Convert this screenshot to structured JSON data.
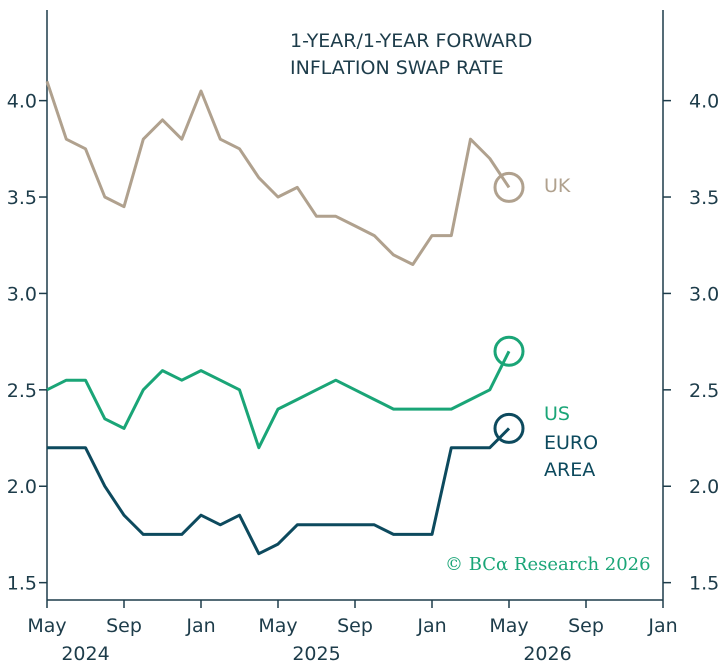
{
  "chart_data": {
    "type": "line",
    "title": "1-YEAR/1-YEAR FORWARD INFLATION SWAP RATE",
    "source": "© BCα Research 2026",
    "x": [
      "2024-05",
      "2024-06",
      "2024-07",
      "2024-08",
      "2024-09",
      "2024-10",
      "2024-11",
      "2024-12",
      "2025-01",
      "2025-02",
      "2025-03",
      "2025-04",
      "2025-05",
      "2025-06",
      "2025-07",
      "2025-08",
      "2025-09",
      "2025-10",
      "2025-11",
      "2025-12",
      "2026-01",
      "2026-02",
      "2026-03",
      "2026-04",
      "2026-05"
    ],
    "series": [
      {
        "name": "UK",
        "color": "#b0a18e",
        "values": [
          4.1,
          3.8,
          3.75,
          3.5,
          3.45,
          3.8,
          3.9,
          3.8,
          4.05,
          3.8,
          3.75,
          3.6,
          3.5,
          3.55,
          3.4,
          3.4,
          3.35,
          3.3,
          3.2,
          3.15,
          3.3,
          3.3,
          3.8,
          3.7,
          3.55
        ]
      },
      {
        "name": "US",
        "color": "#1aa577",
        "values": [
          2.5,
          2.55,
          2.55,
          2.35,
          2.3,
          2.5,
          2.6,
          2.55,
          2.6,
          2.55,
          2.5,
          2.2,
          2.4,
          2.45,
          2.5,
          2.55,
          2.5,
          2.45,
          2.4,
          2.4,
          2.4,
          2.4,
          2.45,
          2.5,
          2.7
        ]
      },
      {
        "name": "EURO AREA",
        "color": "#0d4a5e",
        "values": [
          2.2,
          2.2,
          2.2,
          2.0,
          1.85,
          1.75,
          1.75,
          1.75,
          1.85,
          1.8,
          1.85,
          1.65,
          1.7,
          1.8,
          1.8,
          1.8,
          1.8,
          1.8,
          1.75,
          1.75,
          1.75,
          2.2,
          2.2,
          2.2,
          2.3
        ]
      }
    ],
    "xlim": [
      "2024-05",
      "2027-01"
    ],
    "xticks": [
      {
        "value": "2024-05",
        "label": "May"
      },
      {
        "value": "2024-09",
        "label": "Sep"
      },
      {
        "value": "2025-01",
        "label": "Jan"
      },
      {
        "value": "2025-05",
        "label": "May"
      },
      {
        "value": "2025-09",
        "label": "Sep"
      },
      {
        "value": "2026-01",
        "label": "Jan"
      },
      {
        "value": "2026-05",
        "label": "May"
      },
      {
        "value": "2026-09",
        "label": "Sep"
      },
      {
        "value": "2027-01",
        "label": "Jan"
      }
    ],
    "year_labels": [
      {
        "value": "2024-07",
        "label": "2024"
      },
      {
        "value": "2025-07",
        "label": "2025"
      },
      {
        "value": "2026-07",
        "label": "2026"
      }
    ],
    "ylim": [
      1.41,
      4.47
    ],
    "yticks": [
      {
        "value": 1.5,
        "label": "1.5"
      },
      {
        "value": 2,
        "label": "2.0"
      },
      {
        "value": 2.5,
        "label": "2.5"
      },
      {
        "value": 3,
        "label": "3.0"
      },
      {
        "value": 3.5,
        "label": "3.5"
      },
      {
        "value": 4,
        "label": "4.0"
      }
    ],
    "end_markers": true
  }
}
